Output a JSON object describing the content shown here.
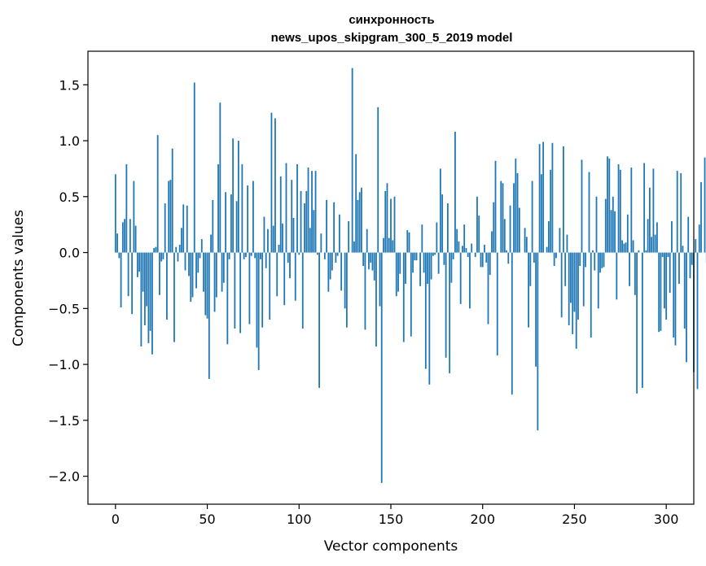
{
  "chart_data": {
    "type": "bar",
    "title": "синхронность",
    "subtitle": "news_upos_skipgram_300_5_2019 model",
    "xlabel": "Vector components",
    "ylabel": "Components values",
    "xlim": [
      -15,
      315
    ],
    "ylim": [
      -2.25,
      1.8
    ],
    "xticks": [
      0,
      50,
      100,
      150,
      200,
      250,
      300
    ],
    "yticks": [
      -2.0,
      -1.5,
      -1.0,
      -0.5,
      0.0,
      0.5,
      1.0,
      1.5
    ],
    "xtick_labels": [
      "0",
      "50",
      "100",
      "150",
      "200",
      "250",
      "300"
    ],
    "ytick_labels": [
      "−2.0",
      "−1.5",
      "−1.0",
      "−0.5",
      "0.0",
      "0.5",
      "1.0",
      "1.5"
    ],
    "grid": false,
    "legend": "none",
    "bar_color": "#1f77b4",
    "series": [
      {
        "values": [
          0.7,
          0.17,
          -0.05,
          -0.49,
          0.27,
          0.3,
          0.79,
          -0.39,
          0.3,
          -0.55,
          0.64,
          0.24,
          -0.22,
          -0.17,
          -0.84,
          -0.35,
          -0.65,
          -0.48,
          -0.81,
          -0.7,
          -0.91,
          0.04,
          0.05,
          1.05,
          -0.38,
          -0.08,
          -0.06,
          0.44,
          -0.6,
          0.64,
          0.65,
          0.93,
          -0.8,
          0.05,
          -0.08,
          0.07,
          0.22,
          0.43,
          -0.16,
          0.42,
          -0.21,
          -0.44,
          -0.4,
          1.52,
          -0.32,
          -0.18,
          -0.05,
          0.12,
          -0.35,
          -0.56,
          -0.59,
          -1.13,
          0.16,
          0.47,
          -0.53,
          -0.4,
          0.79,
          1.34,
          -0.35,
          -0.27,
          0.54,
          -0.82,
          -0.06,
          0.52,
          1.02,
          -0.68,
          0.46,
          1.0,
          -0.72,
          0.79,
          -0.06,
          -0.04,
          0.6,
          -0.64,
          -0.03,
          0.64,
          -0.05,
          -0.85,
          -1.05,
          -0.06,
          -0.67,
          0.32,
          -0.14,
          0.21,
          -0.6,
          1.25,
          0.24,
          1.2,
          -0.39,
          0.07,
          0.68,
          0.26,
          -0.47,
          0.8,
          -0.09,
          -0.23,
          0.65,
          0.31,
          -0.43,
          0.79,
          -0.02,
          0.55,
          -0.68,
          0.44,
          0.55,
          0.76,
          0.22,
          0.73,
          0.38,
          0.73,
          -0.02,
          -1.21,
          0.17,
          0.0,
          -0.06,
          0.47,
          -0.35,
          -0.24,
          -0.16,
          0.45,
          -0.09,
          -0.03,
          0.34,
          -0.34,
          0.0,
          -0.5,
          -0.67,
          0.28,
          0.0,
          1.65,
          0.1,
          0.88,
          0.47,
          0.54,
          0.58,
          -0.12,
          -0.69,
          0.21,
          -0.15,
          -0.09,
          -0.16,
          -0.25,
          -0.84,
          1.3,
          -0.48,
          -2.06,
          0.13,
          0.55,
          0.62,
          0.13,
          0.48,
          0.11,
          0.5,
          -0.39,
          -0.35,
          -0.19,
          0.0,
          -0.8,
          -0.28,
          0.2,
          0.18,
          -0.75,
          -0.18,
          -0.07,
          -0.07,
          0.0,
          -0.3,
          0.25,
          -0.18,
          -1.04,
          -0.28,
          -1.18,
          -0.24,
          -0.03,
          -0.02,
          0.27,
          -0.19,
          0.75,
          0.52,
          -0.11,
          -0.94,
          0.44,
          -1.08,
          -0.27,
          -0.06,
          1.08,
          0.21,
          0.1,
          -0.46,
          0.06,
          0.25,
          0.04,
          -0.04,
          -0.5,
          0.08,
          0.0,
          -0.04,
          0.5,
          0.33,
          -0.13,
          -0.13,
          0.07,
          -0.09,
          -0.64,
          -0.2,
          0.19,
          0.45,
          0.82,
          -0.92,
          0.0,
          0.64,
          0.62,
          0.3,
          0.02,
          -0.1,
          0.42,
          -1.27,
          0.62,
          0.84,
          0.71,
          0.4,
          0.0,
          0.0,
          0.22,
          0.14,
          -0.67,
          -0.3,
          0.64,
          -0.09,
          -1.02,
          -1.59,
          0.97,
          0.7,
          0.99,
          0.0,
          0.05,
          0.28,
          0.74,
          0.98,
          -0.12,
          -0.05,
          0.0,
          0.22,
          -0.58,
          0.95,
          -0.3,
          0.16,
          -0.65,
          -0.45,
          -0.73,
          -0.53,
          -0.86,
          -0.6,
          -0.12,
          0.83,
          -0.48,
          -0.13,
          0.0,
          0.72,
          -0.76,
          0.02,
          -0.16,
          0.5,
          -0.5,
          -0.18,
          -0.14,
          -0.13,
          0.48,
          0.86,
          0.84,
          0.38,
          0.5,
          0.37,
          -0.42,
          0.79,
          0.74,
          0.11,
          0.08,
          0.09,
          0.34,
          -0.3,
          0.76,
          0.11,
          -0.38,
          -1.26,
          0.02,
          0.0,
          -1.21,
          0.8,
          0.02,
          0.3,
          0.58,
          0.14,
          0.75,
          0.16,
          0.27,
          -0.71,
          -0.7,
          -0.04,
          -0.5,
          -0.6,
          -0.04,
          -0.36,
          0.28,
          -0.76,
          -0.83,
          0.73,
          -0.28,
          0.71,
          0.06,
          -0.68,
          -0.98,
          0.32,
          -0.23,
          -0.11,
          -1.07,
          0.12,
          -1.22,
          0.25,
          0.63,
          0.0,
          0.85,
          -0.09,
          0.09,
          0.0,
          -0.07
        ]
      }
    ]
  }
}
